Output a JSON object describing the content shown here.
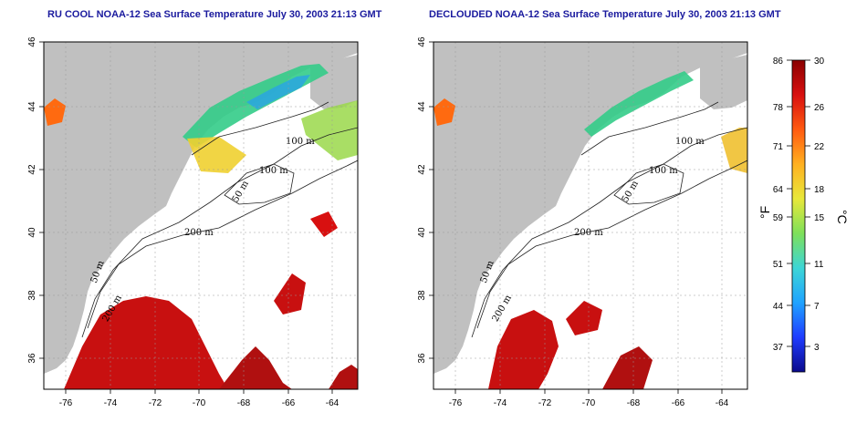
{
  "panels": [
    {
      "id": "left",
      "title": "RU COOL NOAA-12 Sea Surface Temperature July 30, 2003 21:13 GMT",
      "contour_labels": [
        "100 m",
        "100 m",
        "50 m",
        "200 m",
        "50 m",
        "200 m"
      ]
    },
    {
      "id": "right",
      "title": "DECLOUDED NOAA-12 Sea Surface Temperature July 30, 2003 21:13 GMT",
      "contour_labels": [
        "100 m",
        "100 m",
        "50 m",
        "200 m",
        "50 m",
        "200 m"
      ]
    }
  ],
  "x_ticks": [
    "-76",
    "-74",
    "-72",
    "-70",
    "-68",
    "-66",
    "-64"
  ],
  "y_ticks": [
    "46",
    "44",
    "42",
    "40",
    "38",
    "36"
  ],
  "colorbar": {
    "fahrenheit_label": "°F",
    "celsius_label": "°C",
    "fahrenheit_ticks": [
      "86",
      "78",
      "71",
      "64",
      "59",
      "51",
      "44",
      "37"
    ],
    "celsius_ticks": [
      "30",
      "26",
      "22",
      "18",
      "15",
      "11",
      "7",
      "3"
    ],
    "colors": [
      "#0a0a8c",
      "#1f3cff",
      "#1fa3ff",
      "#3dd6d6",
      "#7ee05a",
      "#e8e83a",
      "#ffb020",
      "#ff5a10",
      "#d81010",
      "#8a0000"
    ]
  },
  "map_colors": {
    "land": "#c0c0c0",
    "water": "#ffffff",
    "warm": "#c81010",
    "cool": "#33cc88"
  }
}
